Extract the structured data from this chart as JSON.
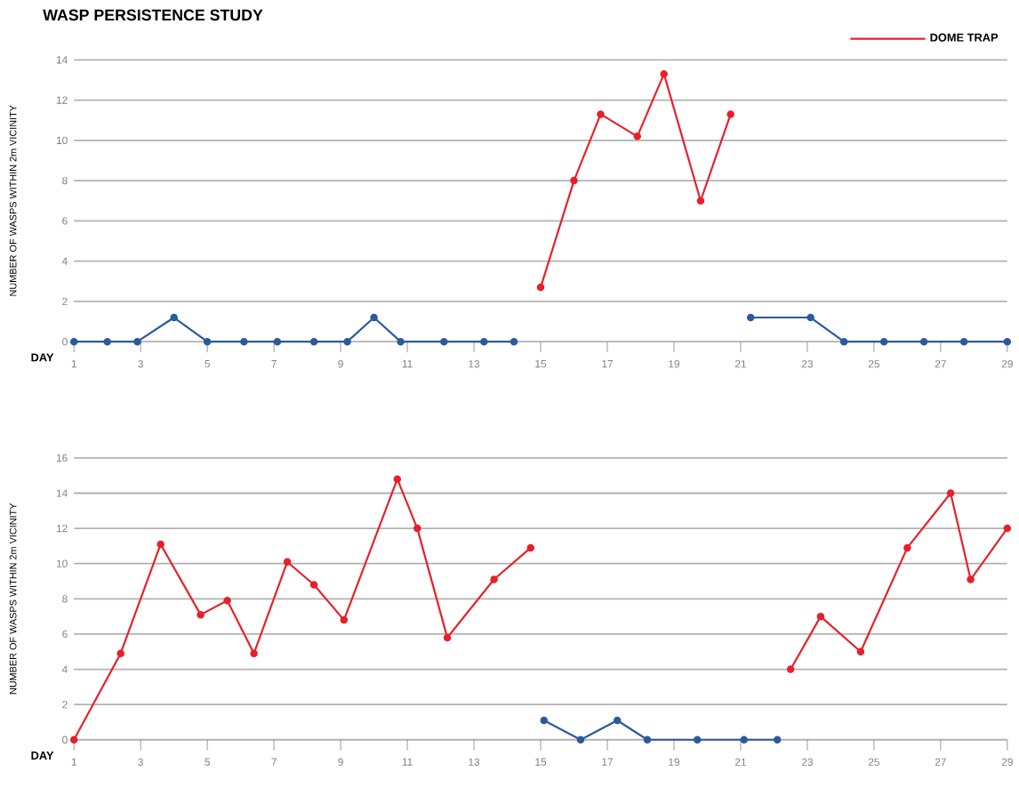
{
  "chart_data": [
    {
      "type": "line",
      "title": "WASP PERSISTENCE STUDY",
      "xlabel": "DAY",
      "ylabel": "NUMBER OF WASPS WITHIN 2m VICINITY",
      "xlim": [
        1,
        29
      ],
      "xticks": [
        1,
        3,
        5,
        7,
        9,
        11,
        13,
        15,
        17,
        19,
        21,
        23,
        25,
        27,
        29
      ],
      "ylim": [
        0,
        14
      ],
      "yticks": [
        0,
        2,
        4,
        6,
        8,
        10,
        12,
        14
      ],
      "grid": "y",
      "legend": "top right",
      "marker": "circle",
      "line_style": "solid",
      "series": [
        {
          "color": "#2c5a9a",
          "x": [
            1,
            2,
            2.9,
            4,
            5,
            6.1,
            7.1,
            8.2,
            9.2,
            10,
            10.8,
            12.1,
            13.3,
            14.2,
            18,
            21.3,
            23.1,
            24.1,
            25.3,
            26.5,
            27.7,
            29
          ],
          "values": [
            0,
            0,
            0,
            1.2,
            0,
            0,
            0,
            0,
            0,
            1.2,
            0,
            0,
            0,
            0,
            null,
            1.2,
            1.2,
            0,
            0,
            0,
            0,
            0
          ]
        },
        {
          "name": "DOME TRAP",
          "color": "#e8202a",
          "x": [
            15,
            16,
            16.8,
            17.9,
            18.7,
            19.8,
            20.7
          ],
          "values": [
            2.7,
            8,
            11.3,
            10.2,
            13.3,
            7,
            11.3
          ]
        }
      ]
    },
    {
      "type": "line",
      "xlabel": "DAY",
      "ylabel": "NUMBER OF WASPS WITHIN 2m VICINITY",
      "xlim": [
        1,
        29
      ],
      "xticks": [
        1,
        3,
        5,
        7,
        9,
        11,
        13,
        15,
        17,
        19,
        21,
        23,
        25,
        27,
        29
      ],
      "ylim": [
        0,
        16
      ],
      "yticks": [
        0,
        2,
        4,
        6,
        8,
        10,
        12,
        14,
        16
      ],
      "grid": "y",
      "marker": "circle",
      "line_style": "solid",
      "series": [
        {
          "color": "#2c5a9a",
          "x": [
            15.1,
            16.2,
            17.3,
            18.2,
            19.7,
            21.1,
            22.1
          ],
          "values": [
            1.1,
            0,
            1.1,
            0,
            0,
            0,
            0
          ]
        },
        {
          "color": "#e8202a",
          "x": [
            1,
            2.4,
            3.6,
            4.8,
            5.6,
            6.4,
            7.4,
            8.2,
            9.1,
            10.7,
            11.3,
            12.2,
            13.6,
            14.7,
            18,
            22.5,
            23.4,
            24.6,
            26,
            27.3,
            27.9,
            29
          ],
          "values": [
            0,
            4.9,
            11.1,
            7.1,
            7.9,
            4.9,
            10.1,
            8.8,
            6.8,
            14.8,
            12,
            5.8,
            9.1,
            10.9,
            null,
            4,
            7,
            5,
            10.9,
            14,
            9.1,
            12
          ]
        }
      ]
    }
  ]
}
